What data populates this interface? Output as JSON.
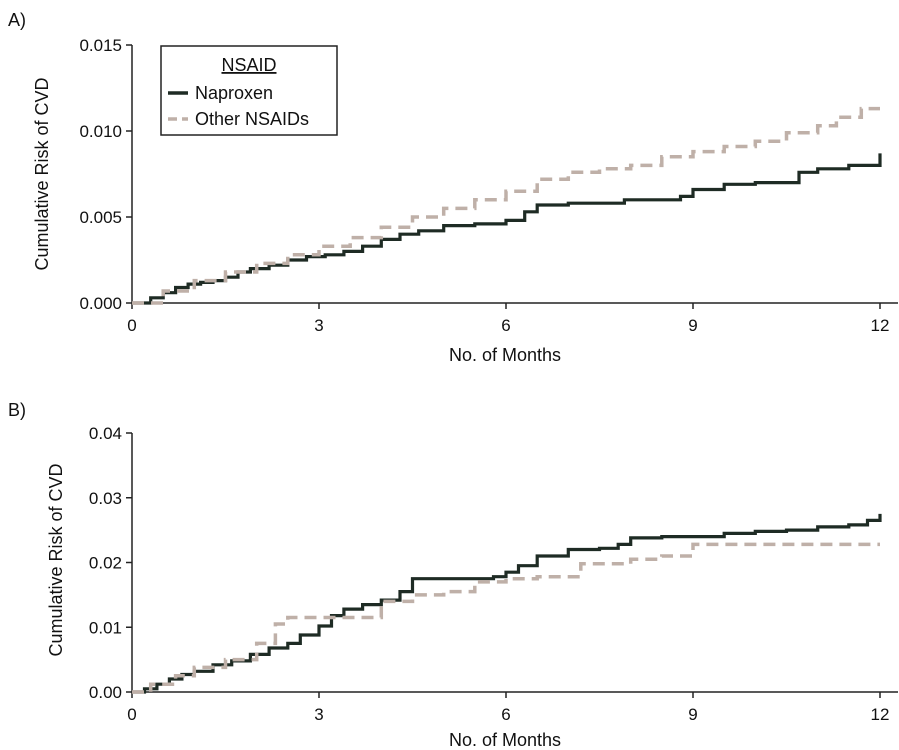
{
  "chart_data": [
    {
      "panel": "A)",
      "type": "line",
      "step": true,
      "xlabel": "No. of Months",
      "ylabel": "Cumulative Risk of CVD",
      "xlim": [
        0,
        12
      ],
      "ylim": [
        0,
        0.015
      ],
      "x_ticks": [
        "0",
        "3",
        "6",
        "9",
        "12"
      ],
      "y_ticks": [
        "0.000",
        "0.005",
        "0.010",
        "0.015"
      ],
      "legend": {
        "title": "NSAID",
        "placement": "top-left"
      },
      "series": [
        {
          "name": "Naproxen",
          "color": "#1e2b24",
          "dash": "solid",
          "x": [
            0,
            0.3,
            0.5,
            0.7,
            0.9,
            1.1,
            1.3,
            1.5,
            1.7,
            1.9,
            2.2,
            2.5,
            2.8,
            3.1,
            3.4,
            3.7,
            4.0,
            4.3,
            4.6,
            5.0,
            5.5,
            6.0,
            6.3,
            6.5,
            7.0,
            7.5,
            7.9,
            8.5,
            8.8,
            9.0,
            9.5,
            10.0,
            10.5,
            10.7,
            11.0,
            11.5,
            11.95,
            12.0
          ],
          "y": [
            0,
            0.0003,
            0.0006,
            0.0009,
            0.0011,
            0.0012,
            0.0013,
            0.0015,
            0.0018,
            0.002,
            0.0022,
            0.0025,
            0.0027,
            0.0028,
            0.003,
            0.0033,
            0.0037,
            0.004,
            0.0042,
            0.0045,
            0.0046,
            0.0048,
            0.0053,
            0.0057,
            0.0058,
            0.0058,
            0.006,
            0.006,
            0.0062,
            0.0066,
            0.0069,
            0.007,
            0.007,
            0.0076,
            0.0078,
            0.008,
            0.008,
            0.0087
          ]
        },
        {
          "name": "Other NSAIDs",
          "color": "#bfb0a8",
          "dash": "dashed",
          "x": [
            0,
            0.5,
            1.0,
            1.5,
            2.0,
            2.5,
            3.0,
            3.5,
            4.0,
            4.5,
            5.0,
            5.5,
            6.0,
            6.5,
            7.0,
            7.5,
            8.0,
            8.5,
            9.0,
            9.5,
            10.0,
            10.5,
            11.0,
            11.3,
            11.7,
            12.0
          ],
          "y": [
            0,
            0.0007,
            0.0013,
            0.0018,
            0.0023,
            0.0028,
            0.0033,
            0.0038,
            0.0044,
            0.005,
            0.0055,
            0.006,
            0.0065,
            0.0072,
            0.0076,
            0.0078,
            0.008,
            0.0085,
            0.0088,
            0.0091,
            0.0094,
            0.0099,
            0.0103,
            0.0108,
            0.0113,
            0.0113
          ]
        }
      ]
    },
    {
      "panel": "B)",
      "type": "line",
      "step": true,
      "xlabel": "No. of Months",
      "ylabel": "Cumulative Risk of CVD",
      "xlim": [
        0,
        12
      ],
      "ylim": [
        0,
        0.04
      ],
      "x_ticks": [
        "0",
        "3",
        "6",
        "9",
        "12"
      ],
      "y_ticks": [
        "0.00",
        "0.01",
        "0.02",
        "0.03",
        "0.04"
      ],
      "series": [
        {
          "name": "Naproxen",
          "color": "#1e2b24",
          "dash": "solid",
          "x": [
            0,
            0.2,
            0.4,
            0.6,
            0.8,
            1.0,
            1.3,
            1.6,
            1.9,
            2.2,
            2.5,
            2.7,
            3.0,
            3.2,
            3.4,
            3.7,
            4.0,
            4.3,
            4.5,
            5.0,
            5.5,
            5.8,
            6.0,
            6.2,
            6.5,
            7.0,
            7.5,
            7.8,
            8.0,
            8.5,
            9.0,
            9.5,
            10.0,
            10.5,
            11.0,
            11.5,
            11.8,
            12.0
          ],
          "y": [
            0,
            0.0005,
            0.0012,
            0.002,
            0.0027,
            0.0032,
            0.0042,
            0.0048,
            0.0058,
            0.0068,
            0.0075,
            0.0088,
            0.0102,
            0.0118,
            0.0128,
            0.0135,
            0.0142,
            0.0155,
            0.0175,
            0.0175,
            0.0175,
            0.0178,
            0.0185,
            0.0195,
            0.021,
            0.022,
            0.0222,
            0.0228,
            0.0238,
            0.024,
            0.024,
            0.0245,
            0.0248,
            0.025,
            0.0255,
            0.0258,
            0.0265,
            0.0275
          ]
        },
        {
          "name": "Other NSAIDs",
          "color": "#bfb0a8",
          "dash": "dashed",
          "x": [
            0,
            0.3,
            0.7,
            1.0,
            1.5,
            2.0,
            2.3,
            2.5,
            3.0,
            3.3,
            3.6,
            4.0,
            4.5,
            5.0,
            5.5,
            6.0,
            6.5,
            7.0,
            7.2,
            8.0,
            8.5,
            9.0,
            9.3,
            10.0,
            11.0,
            12.0
          ],
          "y": [
            0,
            0.0012,
            0.0025,
            0.0038,
            0.005,
            0.0075,
            0.0105,
            0.0115,
            0.0115,
            0.0115,
            0.0115,
            0.014,
            0.015,
            0.0155,
            0.017,
            0.0175,
            0.0178,
            0.0178,
            0.0198,
            0.0205,
            0.021,
            0.0228,
            0.0228,
            0.0228,
            0.0228,
            0.0228
          ]
        }
      ]
    }
  ]
}
